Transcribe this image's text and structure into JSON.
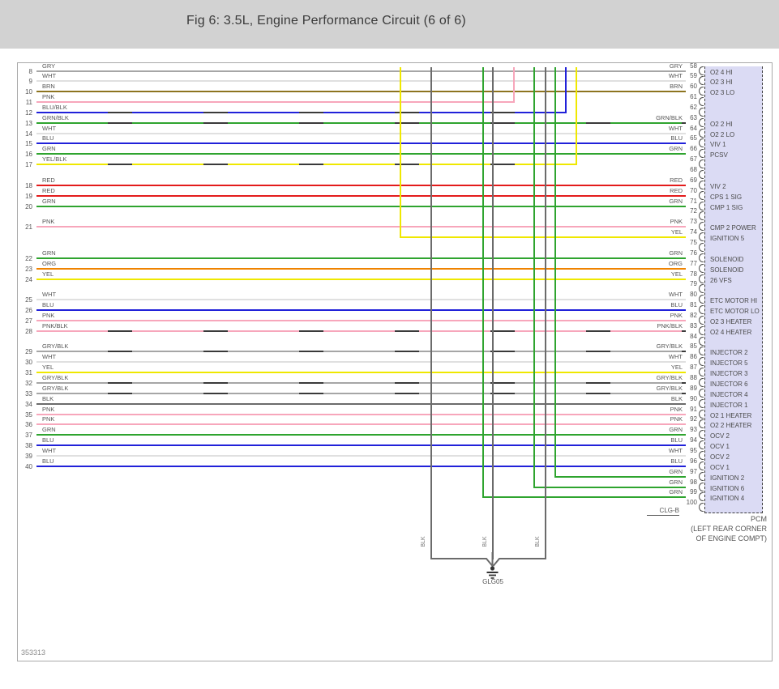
{
  "title": "Fig 6: 3.5L, Engine Performance Circuit (6 of 6)",
  "figure_id": "353313",
  "connector": {
    "name": "PCM",
    "location_line1": "(LEFT REAR CORNER",
    "location_line2": "OF ENGINE COMPT)",
    "bottom_label": "CLG-B"
  },
  "ground": {
    "label": "GLG05",
    "wire": "BLK",
    "stubs_x": [
      531,
      607,
      672
    ]
  },
  "wire_colors": {
    "GRY": "#a6a6a6",
    "WHT": "#e0e0e0",
    "BRN": "#8d741f",
    "PNK": "#f7a6bb",
    "BLU": "#2121d9",
    "GRN": "#2fa42f",
    "YEL": "#efe800",
    "RED": "#e31b1b",
    "ORG": "#ef8300",
    "BLK": "#6b6b6b",
    "stripe": "#3a3a3a",
    "box_fill": "#dbdbf4"
  },
  "pins": [
    {
      "pin": 58,
      "row": 8,
      "wire": "GRY",
      "label": "O2 4 HI",
      "conn": "s"
    },
    {
      "pin": 59,
      "row": 9,
      "wire": "WHT",
      "label": "O2 3 HI",
      "conn": "s"
    },
    {
      "pin": 60,
      "row": 10,
      "wire": "BRN",
      "label": "O2 3 LO",
      "conn": "s"
    },
    {
      "pin": 61,
      "row": 11,
      "wire": "PNK",
      "label": "",
      "conn": "u",
      "vx": 633
    },
    {
      "pin": 62,
      "row": 12,
      "wire": "BLU/BLK",
      "label": "",
      "conn": "u",
      "vx": 697
    },
    {
      "pin": 63,
      "row": 13,
      "wire": "GRN/BLK",
      "label": "O2 2 HI",
      "conn": "s"
    },
    {
      "pin": 64,
      "row": 14,
      "wire": "WHT",
      "label": "O2 2 LO",
      "conn": "s"
    },
    {
      "pin": 65,
      "row": 15,
      "wire": "BLU",
      "label": "VIV 1",
      "conn": "s"
    },
    {
      "pin": 66,
      "row": 16,
      "wire": "GRN",
      "label": "PCSV",
      "conn": "s"
    },
    {
      "pin": 67,
      "row": 17,
      "wire": "YEL/BLK",
      "label": "",
      "conn": "u",
      "vx": 710
    },
    {
      "pin": 68,
      "conn": "n"
    },
    {
      "pin": 69,
      "row": 18,
      "wire": "RED",
      "label": "VIV 2",
      "conn": "s"
    },
    {
      "pin": 70,
      "row": 19,
      "wire": "RED",
      "label": "CPS 1 SIG",
      "conn": "s"
    },
    {
      "pin": 71,
      "row": 20,
      "wire": "GRN",
      "label": "CMP 1 SIG",
      "conn": "s"
    },
    {
      "pin": 72,
      "conn": "n"
    },
    {
      "pin": 73,
      "row": 21,
      "wire": "PNK",
      "label": "CMP 2 POWER",
      "conn": "s"
    },
    {
      "pin": 74,
      "wire": "YEL",
      "label": "IGNITION 5",
      "conn": "t",
      "vx": 493
    },
    {
      "pin": 75,
      "conn": "n"
    },
    {
      "pin": 76,
      "row": 22,
      "wire": "GRN",
      "label": "SOLENOID",
      "conn": "s"
    },
    {
      "pin": 77,
      "row": 23,
      "wire": "ORG",
      "label": "SOLENOID",
      "conn": "s"
    },
    {
      "pin": 78,
      "row": 24,
      "wire": "YEL",
      "label": "26 VFS",
      "conn": "s"
    },
    {
      "pin": 79,
      "conn": "n"
    },
    {
      "pin": 80,
      "row": 25,
      "wire": "WHT",
      "label": "ETC MOTOR HI",
      "conn": "s"
    },
    {
      "pin": 81,
      "row": 26,
      "wire": "BLU",
      "label": "ETC MOTOR LO",
      "conn": "s"
    },
    {
      "pin": 82,
      "row": 27,
      "wire": "PNK",
      "label": "O2 3 HEATER",
      "conn": "s"
    },
    {
      "pin": 83,
      "row": 28,
      "wire": "PNK/BLK",
      "label": "O2 4 HEATER",
      "conn": "s"
    },
    {
      "pin": 84,
      "conn": "n"
    },
    {
      "pin": 85,
      "row": 29,
      "wire": "GRY/BLK",
      "label": "INJECTOR 2",
      "conn": "s"
    },
    {
      "pin": 86,
      "row": 30,
      "wire": "WHT",
      "label": "INJECTOR 5",
      "conn": "s"
    },
    {
      "pin": 87,
      "row": 31,
      "wire": "YEL",
      "label": "INJECTOR 3",
      "conn": "s"
    },
    {
      "pin": 88,
      "row": 32,
      "wire": "GRY/BLK",
      "label": "INJECTOR 6",
      "conn": "s"
    },
    {
      "pin": 89,
      "row": 33,
      "wire": "GRY/BLK",
      "label": "INJECTOR 4",
      "conn": "s"
    },
    {
      "pin": 90,
      "row": 34,
      "wire": "BLK",
      "label": "INJECTOR 1",
      "conn": "s"
    },
    {
      "pin": 91,
      "row": 35,
      "wire": "PNK",
      "label": "O2 1 HEATER",
      "conn": "s"
    },
    {
      "pin": 92,
      "row": 36,
      "wire": "PNK",
      "label": "O2 2 HEATER",
      "conn": "s"
    },
    {
      "pin": 93,
      "row": 37,
      "wire": "GRN",
      "label": "OCV 2",
      "conn": "s"
    },
    {
      "pin": 94,
      "row": 38,
      "wire": "BLU",
      "label": "OCV 1",
      "conn": "s"
    },
    {
      "pin": 95,
      "row": 39,
      "wire": "WHT",
      "label": "OCV 2",
      "conn": "s"
    },
    {
      "pin": 96,
      "row": 40,
      "wire": "BLU",
      "label": "OCV 1",
      "conn": "s"
    },
    {
      "pin": 97,
      "wire": "GRN",
      "label": "IGNITION 2",
      "conn": "t",
      "vx": 684
    },
    {
      "pin": 98,
      "wire": "GRN",
      "label": "IGNITION 6",
      "conn": "t",
      "vx": 658
    },
    {
      "pin": 99,
      "wire": "GRN",
      "label": "IGNITION 4",
      "conn": "t",
      "vx": 595
    },
    {
      "pin": 100,
      "conn": "n"
    }
  ]
}
